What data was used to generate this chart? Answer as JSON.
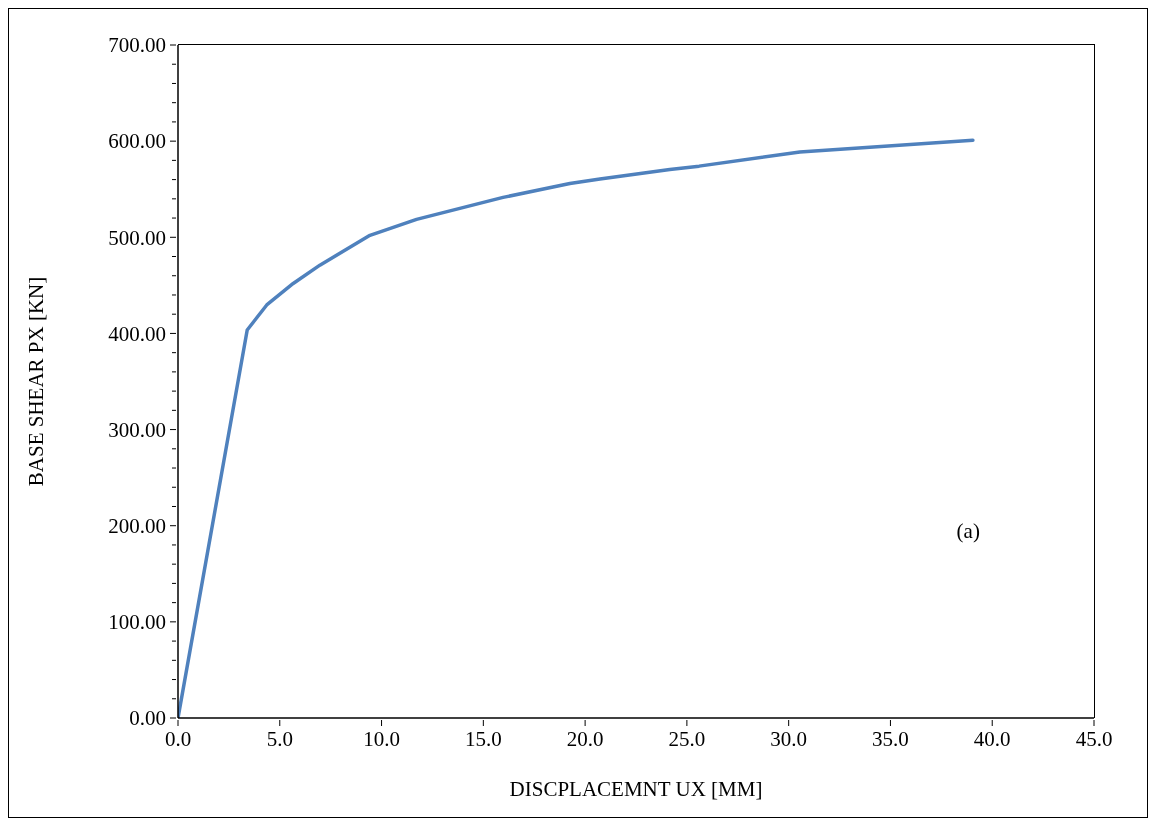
{
  "chart_data": {
    "type": "line",
    "xlabel": "DISCPLACEMNT UX [MM]",
    "ylabel": "BASE SHEAR PX [KN]",
    "annotations": [
      "(a)"
    ],
    "x": [
      0,
      3.4,
      4.36,
      5.66,
      6.97,
      9.43,
      11.72,
      15.97,
      19.25,
      20.73,
      24.16,
      25.6,
      30.55,
      39.05
    ],
    "series": [
      {
        "color": "#4f81bd",
        "values": [
          0,
          403.6,
          429.6,
          452,
          471,
          502,
          518.6,
          541.5,
          556,
          560.6,
          570.6,
          574,
          588.7,
          601
        ]
      }
    ],
    "xlim": [
      0,
      45
    ],
    "xticks": [
      {
        "value": 0,
        "label": "0.0"
      },
      {
        "value": 5,
        "label": "5.0"
      },
      {
        "value": 10,
        "label": "10.0"
      },
      {
        "value": 15,
        "label": "15.0"
      },
      {
        "value": 20,
        "label": "20.0"
      },
      {
        "value": 25,
        "label": "25.0"
      },
      {
        "value": 30,
        "label": "30.0"
      },
      {
        "value": 35,
        "label": "35.0"
      },
      {
        "value": 40,
        "label": "40.0"
      },
      {
        "value": 45,
        "label": "45.0"
      }
    ],
    "ylim": [
      0,
      700
    ],
    "yticks": [
      {
        "value": 0,
        "label": "0.00"
      },
      {
        "value": 20,
        "label": null
      },
      {
        "value": 40,
        "label": null
      },
      {
        "value": 60,
        "label": null
      },
      {
        "value": 80,
        "label": null
      },
      {
        "value": 100,
        "label": "100.00"
      },
      {
        "value": 120,
        "label": null
      },
      {
        "value": 140,
        "label": null
      },
      {
        "value": 160,
        "label": null
      },
      {
        "value": 180,
        "label": null
      },
      {
        "value": 200,
        "label": "200.00"
      },
      {
        "value": 220,
        "label": null
      },
      {
        "value": 240,
        "label": null
      },
      {
        "value": 260,
        "label": null
      },
      {
        "value": 280,
        "label": null
      },
      {
        "value": 300,
        "label": "300.00"
      },
      {
        "value": 320,
        "label": null
      },
      {
        "value": 340,
        "label": null
      },
      {
        "value": 360,
        "label": null
      },
      {
        "value": 380,
        "label": null
      },
      {
        "value": 400,
        "label": "400.00"
      },
      {
        "value": 420,
        "label": null
      },
      {
        "value": 440,
        "label": null
      },
      {
        "value": 460,
        "label": null
      },
      {
        "value": 480,
        "label": null
      },
      {
        "value": 500,
        "label": "500.00"
      },
      {
        "value": 520,
        "label": null
      },
      {
        "value": 540,
        "label": null
      },
      {
        "value": 560,
        "label": null
      },
      {
        "value": 580,
        "label": null
      },
      {
        "value": 600,
        "label": "600.00"
      },
      {
        "value": 620,
        "label": null
      },
      {
        "value": 640,
        "label": null
      },
      {
        "value": 660,
        "label": null
      },
      {
        "value": 680,
        "label": null
      },
      {
        "value": 700,
        "label": "700.00"
      }
    ],
    "grid": false,
    "legend": false,
    "marker": "none",
    "line_style": "solid"
  }
}
